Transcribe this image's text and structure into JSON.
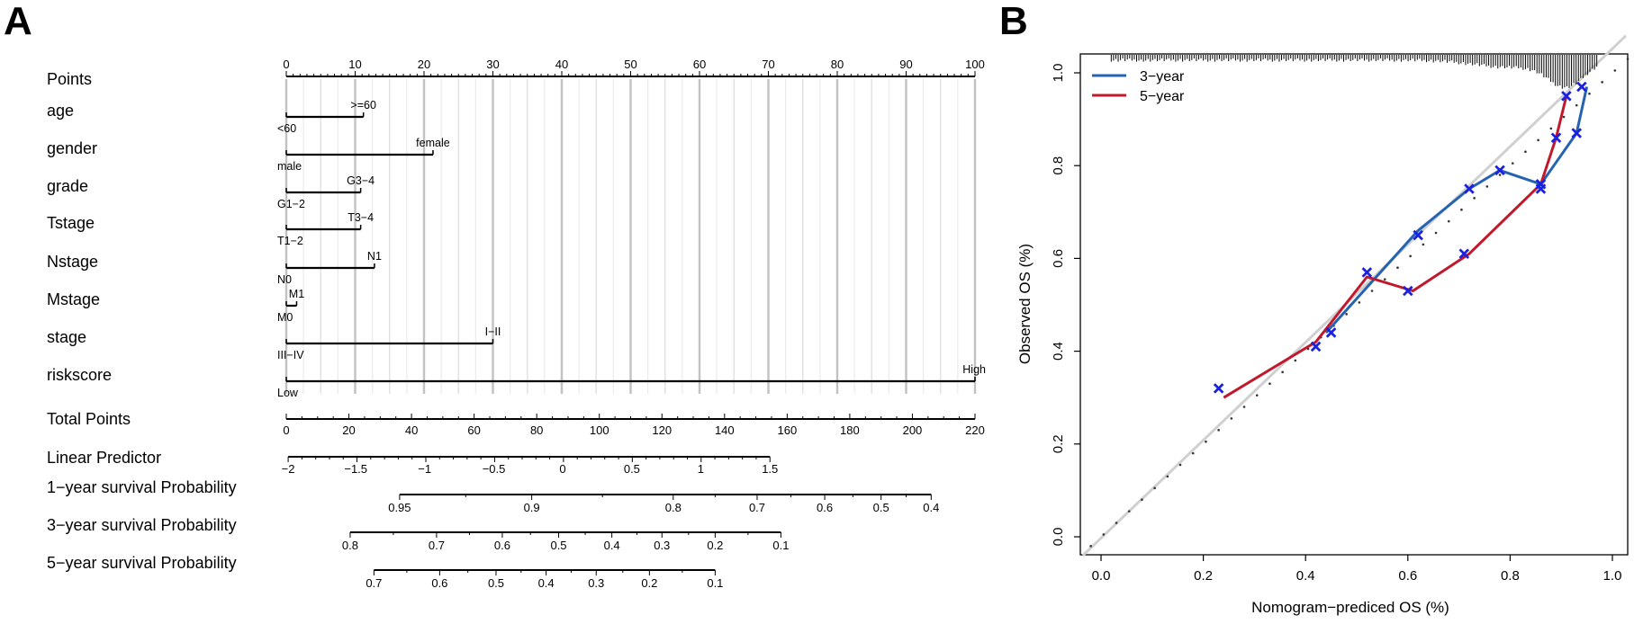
{
  "panel_a": {
    "letter": "A",
    "points_row": {
      "label": "Points",
      "ticks": [
        0,
        10,
        20,
        30,
        40,
        50,
        60,
        70,
        80,
        90,
        100
      ]
    },
    "variables": [
      {
        "label": "age",
        "max_points": 11.2,
        "low": {
          "text": "<60",
          "value": 0
        },
        "high": {
          "text": ">=60",
          "value": 11.2
        }
      },
      {
        "label": "gender",
        "max_points": 21.3,
        "low": {
          "text": "male",
          "value": 0
        },
        "high": {
          "text": "female",
          "value": 21.3
        }
      },
      {
        "label": "grade",
        "max_points": 10.8,
        "low": {
          "text": "G1−2",
          "value": 0
        },
        "high": {
          "text": "G3−4",
          "value": 10.8
        }
      },
      {
        "label": "Tstage",
        "max_points": 10.8,
        "low": {
          "text": "T1−2",
          "value": 0
        },
        "high": {
          "text": "T3−4",
          "value": 10.8
        }
      },
      {
        "label": "Nstage",
        "max_points": 12.8,
        "low": {
          "text": "N0",
          "value": 0
        },
        "high": {
          "text": "N1",
          "value": 12.8
        }
      },
      {
        "label": "Mstage",
        "max_points": 1.5,
        "low": {
          "text": "M0",
          "value": 0
        },
        "high": {
          "text": "M1",
          "value": 1.5
        }
      },
      {
        "label": "stage",
        "max_points": 30.0,
        "low": {
          "text": "III−IV",
          "value": 0
        },
        "high": {
          "text": "I−II",
          "value": 30.0
        }
      },
      {
        "label": "riskscore",
        "max_points": 100,
        "low": {
          "text": "Low",
          "value": 0
        },
        "high": {
          "text": "High",
          "value": 100
        }
      }
    ],
    "total_points": {
      "label": "Total Points",
      "ticks": [
        0,
        20,
        40,
        60,
        80,
        100,
        120,
        140,
        160,
        180,
        200,
        220
      ]
    },
    "linear_predictor": {
      "label": "Linear Predictor",
      "ticks": [
        {
          "text": "−2",
          "total": 0.6
        },
        {
          "text": "−1.5",
          "total": 22.2
        },
        {
          "text": "−1",
          "total": 44.2
        },
        {
          "text": "−0.5",
          "total": 66.3
        },
        {
          "text": "0",
          "total": 88.3
        },
        {
          "text": "0.5",
          "total": 110.4
        },
        {
          "text": "1",
          "total": 132.4
        },
        {
          "text": "1.5",
          "total": 154.5
        }
      ]
    },
    "survival_rows": [
      {
        "label": "1−year survival Probability",
        "ticks": [
          {
            "text": "0.95",
            "total": 36.2
          },
          {
            "text": "0.9",
            "total": 78.4
          },
          {
            "text": "0.8",
            "total": 123.6
          },
          {
            "text": "0.7",
            "total": 150.4
          },
          {
            "text": "0.6",
            "total": 172.0
          },
          {
            "text": "0.5",
            "total": 190.0
          },
          {
            "text": "0.4",
            "total": 206.0
          }
        ]
      },
      {
        "label": "3−year survival Probability",
        "ticks": [
          {
            "text": "0.8",
            "total": 20.4
          },
          {
            "text": "0.7",
            "total": 48.0
          },
          {
            "text": "0.6",
            "total": 69.0
          },
          {
            "text": "0.5",
            "total": 87.0
          },
          {
            "text": "0.4",
            "total": 104.0
          },
          {
            "text": "0.3",
            "total": 120.0
          },
          {
            "text": "0.2",
            "total": 137.0
          },
          {
            "text": "0.1",
            "total": 158.0
          }
        ]
      },
      {
        "label": "5−year survival Probability",
        "ticks": [
          {
            "text": "0.7",
            "total": 28.0
          },
          {
            "text": "0.6",
            "total": 49.0
          },
          {
            "text": "0.5",
            "total": 67.0
          },
          {
            "text": "0.4",
            "total": 83.0
          },
          {
            "text": "0.3",
            "total": 99.0
          },
          {
            "text": "0.2",
            "total": 116.0
          },
          {
            "text": "0.1",
            "total": 137.0
          }
        ]
      }
    ]
  },
  "chart_data": {
    "type": "line",
    "panel_letter": "B",
    "xlabel": "Nomogram−prediced OS (%)",
    "ylabel": "Observed OS (%)",
    "xlim": [
      0,
      1
    ],
    "ylim": [
      0,
      1
    ],
    "xticks": [
      "0.0",
      "0.2",
      "0.4",
      "0.6",
      "0.8",
      "1.0"
    ],
    "yticks": [
      "0.0",
      "0.2",
      "0.4",
      "0.6",
      "0.8",
      "1.0"
    ],
    "legend_position": "top-left",
    "reference_line": "diagonal",
    "series": [
      {
        "name": "3−year",
        "color": "#2563b0",
        "points": [
          {
            "x": 0.44,
            "y": 0.44
          },
          {
            "x": 0.62,
            "y": 0.66
          },
          {
            "x": 0.72,
            "y": 0.75
          },
          {
            "x": 0.78,
            "y": 0.79
          },
          {
            "x": 0.86,
            "y": 0.76
          },
          {
            "x": 0.93,
            "y": 0.87
          },
          {
            "x": 0.95,
            "y": 0.97
          }
        ],
        "markers": [
          {
            "x": 0.45,
            "y": 0.44
          },
          {
            "x": 0.62,
            "y": 0.65
          },
          {
            "x": 0.72,
            "y": 0.75
          },
          {
            "x": 0.78,
            "y": 0.79
          },
          {
            "x": 0.86,
            "y": 0.76
          },
          {
            "x": 0.93,
            "y": 0.87
          },
          {
            "x": 0.94,
            "y": 0.97
          }
        ]
      },
      {
        "name": "5−year",
        "color": "#c0192c",
        "points": [
          {
            "x": 0.24,
            "y": 0.3
          },
          {
            "x": 0.42,
            "y": 0.42
          },
          {
            "x": 0.52,
            "y": 0.56
          },
          {
            "x": 0.61,
            "y": 0.53
          },
          {
            "x": 0.72,
            "y": 0.61
          },
          {
            "x": 0.86,
            "y": 0.76
          },
          {
            "x": 0.89,
            "y": 0.86
          },
          {
            "x": 0.91,
            "y": 0.95
          }
        ],
        "markers": [
          {
            "x": 0.23,
            "y": 0.32
          },
          {
            "x": 0.42,
            "y": 0.41
          },
          {
            "x": 0.52,
            "y": 0.57
          },
          {
            "x": 0.6,
            "y": 0.53
          },
          {
            "x": 0.71,
            "y": 0.61
          },
          {
            "x": 0.86,
            "y": 0.75
          },
          {
            "x": 0.89,
            "y": 0.86
          },
          {
            "x": 0.91,
            "y": 0.95
          }
        ]
      }
    ],
    "marker_color": "#1a22e0",
    "rug": {
      "location": "top",
      "description": "prediction distribution, dense near 0.85-0.97"
    }
  }
}
